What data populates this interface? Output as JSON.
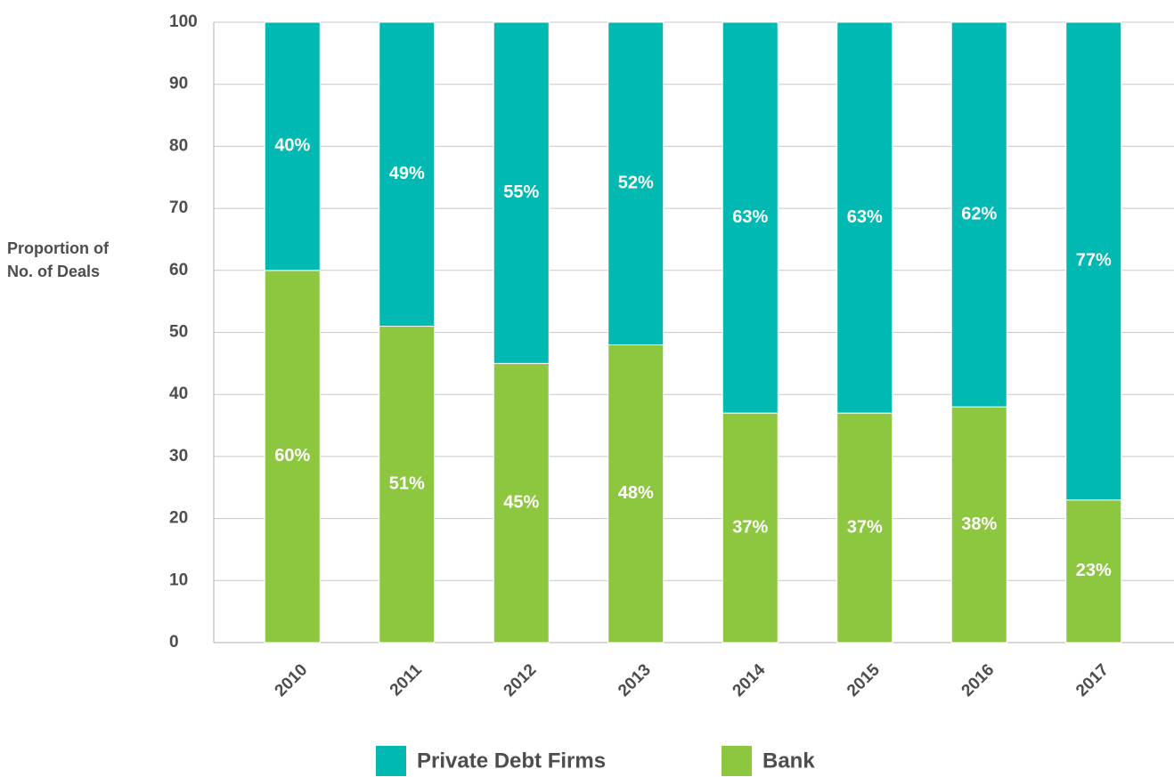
{
  "chart_data": {
    "type": "stacked_bar",
    "ylabel": [
      "Proportion of",
      "No. of Deals"
    ],
    "categories": [
      "2010",
      "2011",
      "2012",
      "2013",
      "2014",
      "2015",
      "2016",
      "2017"
    ],
    "series": [
      {
        "name": "Bank",
        "color": "#8dc63f",
        "values": [
          60,
          51,
          45,
          48,
          37,
          37,
          38,
          23
        ],
        "value_labels": [
          "60%",
          "51%",
          "45%",
          "48%",
          "37%",
          "37%",
          "38%",
          "23%"
        ]
      },
      {
        "name": "Private Debt Firms",
        "color": "#00b9b2",
        "values": [
          40,
          49,
          55,
          52,
          63,
          63,
          62,
          77
        ],
        "value_labels": [
          "40%",
          "49%",
          "55%",
          "52%",
          "63%",
          "63%",
          "62%",
          "77%"
        ]
      }
    ],
    "ylim": [
      0,
      100
    ],
    "yticks": [
      0,
      10,
      20,
      30,
      40,
      50,
      60,
      70,
      80,
      90,
      100
    ],
    "grid": true,
    "legend": "bottom"
  }
}
